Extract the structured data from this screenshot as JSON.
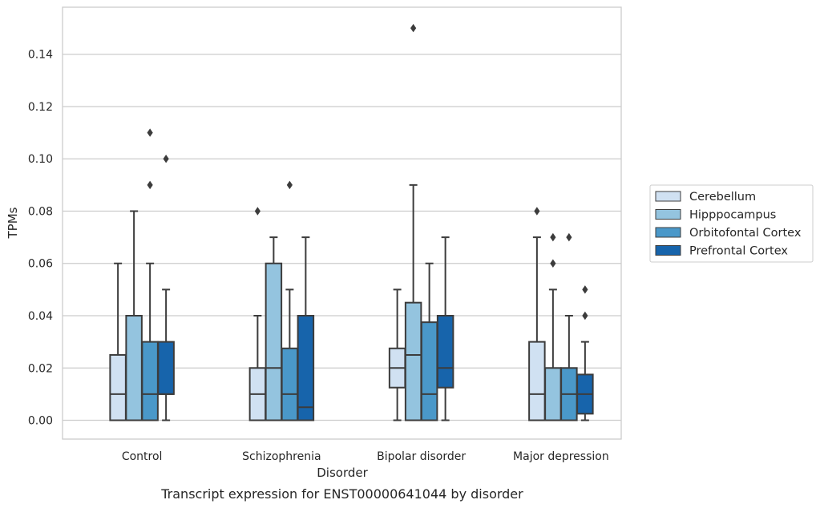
{
  "chart_data": {
    "type": "box",
    "caption": "Transcript expression for ENST00000641044 by disorder",
    "xlabel": "Disorder",
    "ylabel": "TPMs",
    "ylim": [
      -0.0072,
      0.158
    ],
    "yticks": [
      0.0,
      0.02,
      0.04,
      0.06,
      0.08,
      0.1,
      0.12,
      0.14
    ],
    "ytick_labels": [
      "0.00",
      "0.02",
      "0.04",
      "0.06",
      "0.08",
      "0.10",
      "0.12",
      "0.14"
    ],
    "grid": "horizontal",
    "legend_position": "right",
    "categories": [
      "Control",
      "Schizophrenia",
      "Bipolar disorder",
      "Major depression"
    ],
    "series": [
      {
        "name": "Cerebellum",
        "color": "#d0e1f2",
        "boxes": [
          {
            "whislo": 0.0,
            "q1": 0.0,
            "med": 0.01,
            "q3": 0.025,
            "whishi": 0.06,
            "fliers": []
          },
          {
            "whislo": 0.0,
            "q1": 0.0,
            "med": 0.01,
            "q3": 0.02,
            "whishi": 0.04,
            "fliers": [
              0.08
            ]
          },
          {
            "whislo": 0.0,
            "q1": 0.0125,
            "med": 0.02,
            "q3": 0.0275,
            "whishi": 0.05,
            "fliers": []
          },
          {
            "whislo": 0.0,
            "q1": 0.0,
            "med": 0.01,
            "q3": 0.03,
            "whishi": 0.07,
            "fliers": [
              0.08
            ]
          }
        ]
      },
      {
        "name": "Hipppocampus",
        "color": "#94c4df",
        "boxes": [
          {
            "whislo": 0.0,
            "q1": 0.0,
            "med": 0.0,
            "q3": 0.04,
            "whishi": 0.08,
            "fliers": []
          },
          {
            "whislo": 0.0,
            "q1": 0.0,
            "med": 0.02,
            "q3": 0.06,
            "whishi": 0.07,
            "fliers": []
          },
          {
            "whislo": 0.0,
            "q1": 0.0,
            "med": 0.025,
            "q3": 0.045,
            "whishi": 0.09,
            "fliers": [
              0.15
            ]
          },
          {
            "whislo": 0.0,
            "q1": 0.0,
            "med": 0.0,
            "q3": 0.02,
            "whishi": 0.05,
            "fliers": [
              0.06,
              0.07
            ]
          }
        ]
      },
      {
        "name": "Orbitofontal Cortex",
        "color": "#4a98c9",
        "boxes": [
          {
            "whislo": 0.0,
            "q1": 0.0,
            "med": 0.01,
            "q3": 0.03,
            "whishi": 0.06,
            "fliers": [
              0.09,
              0.11
            ]
          },
          {
            "whislo": 0.0,
            "q1": 0.0,
            "med": 0.01,
            "q3": 0.0275,
            "whishi": 0.05,
            "fliers": [
              0.09
            ]
          },
          {
            "whislo": 0.0,
            "q1": 0.0,
            "med": 0.01,
            "q3": 0.0375,
            "whishi": 0.06,
            "fliers": []
          },
          {
            "whislo": 0.0,
            "q1": 0.0,
            "med": 0.01,
            "q3": 0.02,
            "whishi": 0.04,
            "fliers": [
              0.07
            ]
          }
        ]
      },
      {
        "name": "Prefrontal Cortex",
        "color": "#1764ab",
        "boxes": [
          {
            "whislo": 0.0,
            "q1": 0.01,
            "med": 0.01,
            "q3": 0.03,
            "whishi": 0.05,
            "fliers": [
              0.1
            ]
          },
          {
            "whislo": 0.0,
            "q1": 0.0,
            "med": 0.005,
            "q3": 0.04,
            "whishi": 0.07,
            "fliers": []
          },
          {
            "whislo": 0.0,
            "q1": 0.0125,
            "med": 0.02,
            "q3": 0.04,
            "whishi": 0.07,
            "fliers": []
          },
          {
            "whislo": 0.0,
            "q1": 0.0025,
            "med": 0.01,
            "q3": 0.0175,
            "whishi": 0.03,
            "fliers": [
              0.04,
              0.05
            ]
          }
        ]
      }
    ],
    "line_color": "#3c3c3c",
    "grid_color": "#cccccc",
    "frame_color": "#cccccc"
  }
}
